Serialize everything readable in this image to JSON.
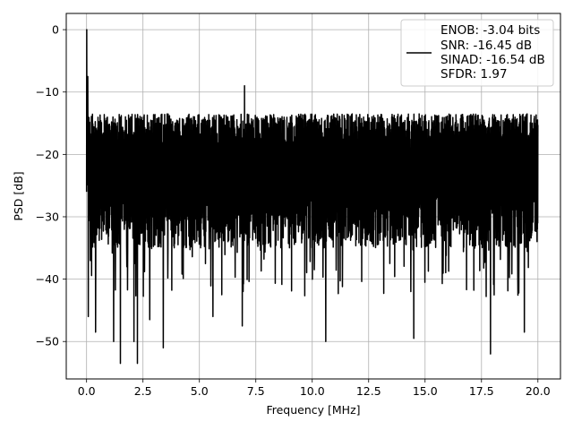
{
  "chart_data": {
    "type": "line",
    "xlabel": "Frequency [MHz]",
    "ylabel": "PSD [dB]",
    "xlim": [
      -0.9,
      21.0
    ],
    "ylim": [
      -56,
      2.6
    ],
    "xticks": [
      0.0,
      2.5,
      5.0,
      7.5,
      10.0,
      12.5,
      15.0,
      17.5,
      20.0
    ],
    "xtick_labels": [
      "0.0",
      "2.5",
      "5.0",
      "7.5",
      "10.0",
      "12.5",
      "15.0",
      "17.5",
      "20.0"
    ],
    "yticks": [
      0,
      -10,
      -20,
      -30,
      -40,
      -50
    ],
    "ytick_labels": [
      "0",
      "−10",
      "−20",
      "−30",
      "−40",
      "−50"
    ],
    "grid": true,
    "legend_position": "top-right",
    "legend": [
      "ENOB: -3.04 bits",
      "SNR: -16.45 dB",
      "SINAD: -16.54 dB",
      "SFDR: 1.97"
    ],
    "line_color": "#000000",
    "series": [
      {
        "noise_floor": {
          "x_range": [
            0.0,
            20.0
          ],
          "typical_range": [
            -35,
            -15
          ],
          "upper_envelope": -13.5,
          "deep_dip_min": -53.5
        },
        "peaks": [
          {
            "x": 0.0,
            "y": 0.0
          },
          {
            "x": 0.05,
            "y": -7.5
          },
          {
            "x": 7.0,
            "y": -9.0
          }
        ],
        "dips": [
          {
            "x": 0.08,
            "y": -46.0
          },
          {
            "x": 0.4,
            "y": -48.5
          },
          {
            "x": 1.2,
            "y": -50.0
          },
          {
            "x": 1.5,
            "y": -53.5
          },
          {
            "x": 2.1,
            "y": -50.0
          },
          {
            "x": 2.25,
            "y": -53.5
          },
          {
            "x": 2.8,
            "y": -46.5
          },
          {
            "x": 3.4,
            "y": -51.0
          },
          {
            "x": 5.6,
            "y": -46.0
          },
          {
            "x": 6.9,
            "y": -47.5
          },
          {
            "x": 10.6,
            "y": -50.0
          },
          {
            "x": 14.5,
            "y": -49.5
          },
          {
            "x": 17.9,
            "y": -52.0
          },
          {
            "x": 19.4,
            "y": -48.5
          }
        ]
      }
    ]
  }
}
